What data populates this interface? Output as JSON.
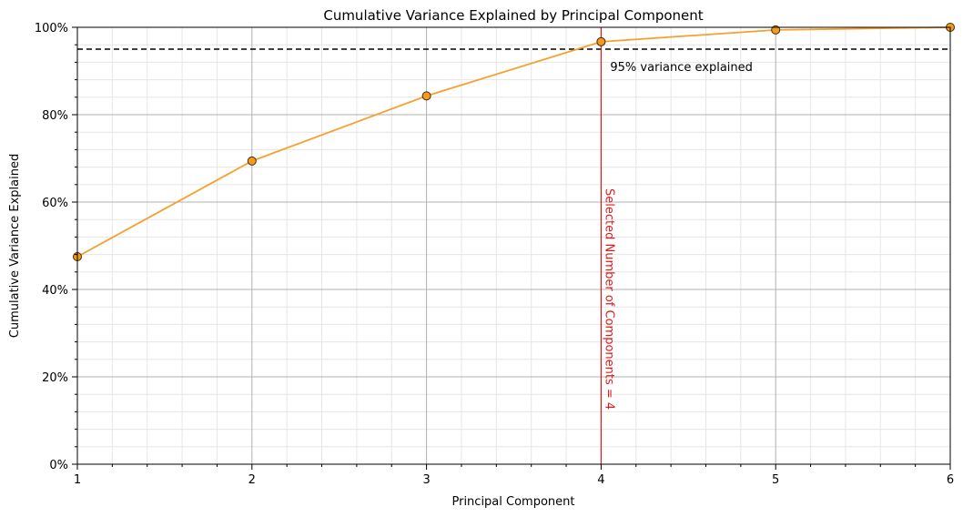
{
  "chart_data": {
    "type": "line",
    "title": "Cumulative Variance Explained by Principal Component",
    "xlabel": "Principal Component",
    "ylabel": "Cumulative Variance Explained",
    "xlim": [
      1,
      6
    ],
    "ylim": [
      0,
      1
    ],
    "x_ticks": [
      "1",
      "2",
      "3",
      "4",
      "5",
      "6"
    ],
    "y_ticks": [
      "0%",
      "20%",
      "40%",
      "60%",
      "80%",
      "100%"
    ],
    "series": [
      {
        "x": [
          1,
          2,
          3,
          4,
          5,
          6
        ],
        "values": [
          0.475,
          0.694,
          0.843,
          0.967,
          0.994,
          1.0
        ],
        "line_color": "#f7a030",
        "marker_color": "#f59a1c",
        "marker_edge_color": "#3a2a10"
      }
    ],
    "threshold_line": {
      "y": 0.95,
      "label": "95% variance explained",
      "color": "#000000",
      "style": "dashed"
    },
    "selected_line": {
      "x": 4,
      "label": "Selected Number of Components = 4",
      "color": "#e31a1c"
    },
    "grid": {
      "major": true,
      "minor": true,
      "major_color": "#b0b0b0",
      "minor_color": "#e6e6e6"
    },
    "legend": "none"
  }
}
